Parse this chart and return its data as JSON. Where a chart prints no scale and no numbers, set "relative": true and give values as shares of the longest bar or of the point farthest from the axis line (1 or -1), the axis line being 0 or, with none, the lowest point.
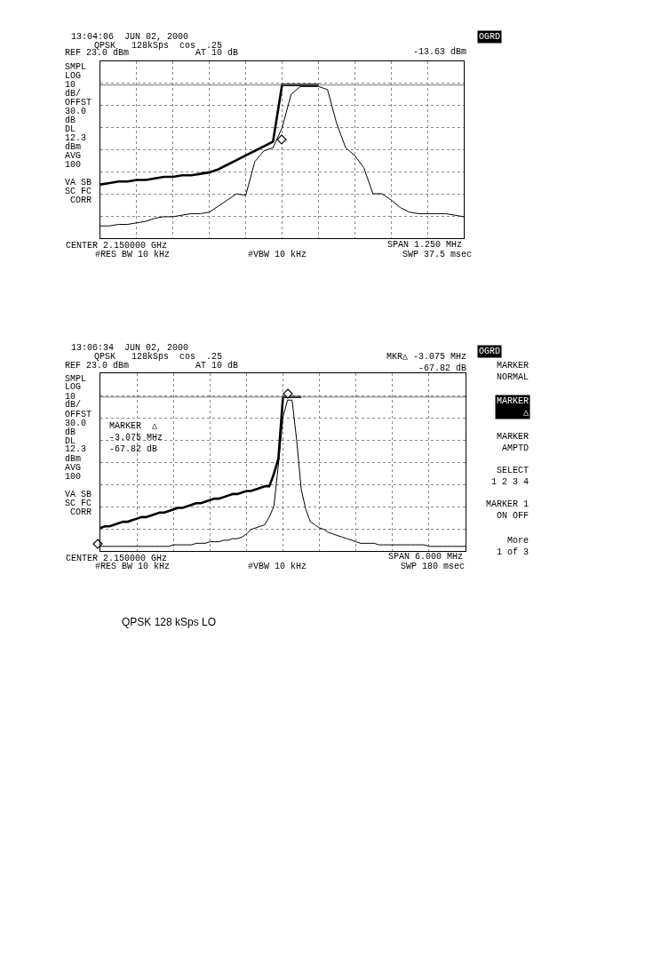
{
  "chart_data": [
    {
      "type": "line",
      "relative": true,
      "grid": true,
      "categories": [
        null,
        null,
        null,
        null,
        null,
        null,
        null,
        null,
        null,
        null,
        null,
        null,
        null,
        null,
        null,
        null,
        null,
        null,
        null,
        null,
        null,
        null,
        null,
        null,
        null,
        null,
        null,
        null,
        null,
        null,
        null,
        null,
        null,
        null,
        null,
        null,
        null,
        null,
        null,
        null,
        null
      ],
      "series": [
        {
          "color": "#000000",
          "values": [
            0.08,
            0.08,
            0.09,
            0.09,
            0.1,
            0.11,
            0.13,
            0.14,
            0.14,
            0.15,
            0.16,
            0.16,
            0.17,
            0.21,
            0.25,
            0.29,
            0.28,
            0.5,
            0.57,
            0.59,
            0.72,
            0.94,
            0.99,
            0.99,
            0.99,
            0.97,
            0.75,
            0.59,
            0.54,
            0.46,
            0.29,
            0.29,
            0.25,
            0.2,
            0.17,
            0.16,
            0.16,
            0.16,
            0.16,
            0.15,
            0.14
          ]
        },
        {
          "color": "#000000",
          "values": [
            0.35,
            0.36,
            0.37,
            0.37,
            0.38,
            0.38,
            0.39,
            0.4,
            0.4,
            0.41,
            0.41,
            0.42,
            0.43,
            0.45,
            0.48,
            0.51,
            0.54,
            0.57,
            0.6,
            0.63,
            1,
            1,
            1,
            1,
            1,
            null,
            null,
            null,
            null,
            null,
            null,
            null,
            null,
            null,
            null,
            null,
            null,
            null,
            null,
            null,
            null
          ]
        },
        {
          "color": "#777777",
          "values": [
            1,
            1,
            1,
            1,
            1,
            1,
            1,
            1,
            1,
            1,
            1,
            1,
            1,
            1,
            1,
            1,
            1,
            1,
            1,
            1,
            1,
            1,
            1,
            1,
            1,
            1,
            1,
            1,
            1,
            1,
            1,
            1,
            1,
            1,
            1,
            1,
            1,
            1,
            1,
            1,
            1
          ]
        }
      ],
      "annotations": [
        "13:04:06  JUN 02, 2000",
        "QPSK   128kSps  cos  .25",
        "REF 23.0 dBm",
        "AT 10 dB",
        "SMPL\nLOG\n10\ndB/\nOFFST\n30.0\ndB\nDL\n12.3\ndBm\nAVG\n100\n\nVA SB\nSC FC\n CORR",
        "CENTER 2.150000 GHz",
        "#RES BW 10 kHz",
        "#VBW 10 kHz",
        "SPAN 1.250 MHz",
        "SWP 37.5 msec",
        "OGRD",
        "-13.63 dBm"
      ]
    },
    {
      "type": "line",
      "relative": true,
      "grid": true,
      "categories": [
        null,
        null,
        null,
        null,
        null,
        null,
        null,
        null,
        null,
        null,
        null,
        null,
        null,
        null,
        null,
        null,
        null,
        null,
        null,
        null,
        null,
        null,
        null,
        null,
        null,
        null,
        null,
        null,
        null,
        null,
        null,
        null,
        null,
        null,
        null,
        null,
        null,
        null,
        null,
        null,
        null,
        null,
        null,
        null,
        null,
        null,
        null,
        null,
        null,
        null,
        null,
        null,
        null,
        null,
        null,
        null,
        null,
        null,
        null,
        null,
        null,
        null,
        null,
        null,
        null,
        null,
        null,
        null,
        null,
        null,
        null,
        null,
        null,
        null,
        null,
        null,
        null,
        null,
        null,
        null,
        null
      ],
      "series": [
        {
          "color": "#000000",
          "values": [
            0.03,
            0.03,
            0.03,
            0.03,
            0.03,
            0.03,
            0.03,
            0.03,
            0.03,
            0.03,
            0.03,
            0.03,
            0.03,
            0.03,
            0.03,
            0.03,
            0.04,
            0.04,
            0.04,
            0.04,
            0.04,
            0.05,
            0.05,
            0.05,
            0.06,
            0.06,
            0.06,
            0.07,
            0.07,
            0.08,
            0.08,
            0.09,
            0.11,
            0.14,
            0.15,
            0.16,
            0.17,
            0.22,
            0.29,
            0.56,
            0.87,
            0.98,
            0.98,
            0.72,
            0.4,
            0.27,
            0.19,
            0.17,
            0.15,
            0.14,
            0.12,
            0.11,
            0.1,
            0.09,
            0.08,
            0.07,
            0.06,
            0.05,
            0.05,
            0.05,
            0.05,
            0.04,
            0.04,
            0.04,
            0.04,
            0.04,
            0.04,
            0.04,
            0.04,
            0.04,
            0.04,
            0.04,
            0.03,
            0.03,
            0.03,
            0.03,
            0.03,
            0.03,
            0.03,
            0.03,
            0.03
          ]
        },
        {
          "color": "#000000",
          "values": [
            0.15,
            0.16,
            0.16,
            0.17,
            0.18,
            0.19,
            0.19,
            0.2,
            0.21,
            0.22,
            0.22,
            0.23,
            0.24,
            0.25,
            0.25,
            0.26,
            0.27,
            0.28,
            0.28,
            0.29,
            0.3,
            0.31,
            0.31,
            0.32,
            0.33,
            0.34,
            0.34,
            0.35,
            0.36,
            0.37,
            0.37,
            0.38,
            0.39,
            0.39,
            0.4,
            0.41,
            0.42,
            0.42,
            0.5,
            0.6,
            1,
            1,
            1,
            1,
            1,
            null,
            null,
            null,
            null,
            null,
            null,
            null,
            null,
            null,
            null,
            null,
            null,
            null,
            null,
            null,
            null,
            null,
            null,
            null,
            null,
            null,
            null,
            null,
            null,
            null,
            null,
            null,
            null,
            null,
            null,
            null,
            null,
            null,
            null,
            null,
            null
          ]
        },
        {
          "color": "#777777",
          "values": [
            1,
            1,
            1,
            1,
            1,
            1,
            1,
            1,
            1,
            1,
            1,
            1,
            1,
            1,
            1,
            1,
            1,
            1,
            1,
            1,
            1,
            1,
            1,
            1,
            1,
            1,
            1,
            1,
            1,
            1,
            1,
            1,
            1,
            1,
            1,
            1,
            1,
            1,
            1,
            1,
            1,
            1,
            1,
            1,
            1,
            1,
            1,
            1,
            1,
            1,
            1,
            1,
            1,
            1,
            1,
            1,
            1,
            1,
            1,
            1,
            1,
            1,
            1,
            1,
            1,
            1,
            1,
            1,
            1,
            1,
            1,
            1,
            1,
            1,
            1,
            1,
            1,
            1,
            1,
            1,
            1
          ]
        }
      ],
      "annotations": [
        "13:06:34  JUN 02, 2000",
        "QPSK   128kSps  cos  .25",
        "REF 23.0 dBm",
        "AT 10 dB",
        "SMPL\nLOG\n10\ndB/\nOFFST\n30.0\ndB\nDL\n12.3\ndBm\nAVG\n100\n\nVA SB\nSC FC\n CORR",
        "CENTER 2.150000 GHz",
        "#RES BW 10 kHz",
        "#VBW 10 kHz",
        "SPAN 6.000 MHz",
        "SWP 180 msec",
        "OGRD",
        "MKR△ -3.075 MHz\n-67.82 dB",
        "MARKER  △\n-3.075 MHz\n-67.82 dB",
        "MARKER\nNORMAL",
        "MARKER\n△",
        "MARKER\nAMPTD",
        "SELECT\n1 2 3 4",
        "MARKER 1\nON OFF",
        "More\n1 of 3",
        "QPSK 128 kSps LO"
      ]
    }
  ]
}
